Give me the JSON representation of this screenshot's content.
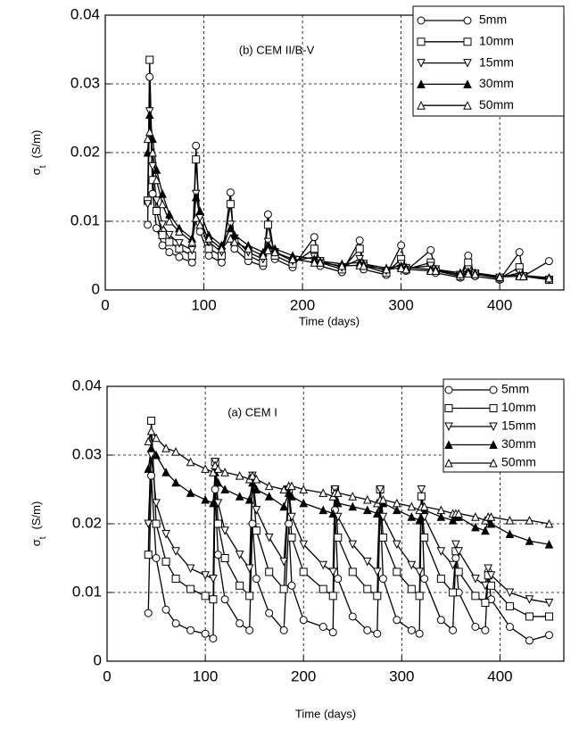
{
  "chart_data": [
    {
      "type": "line",
      "annotation": "(b) CEM II/B-V",
      "x_label": "Time (days)",
      "y_label": "σ",
      "y_label_sub": "t",
      "y_label_unit": "(S/m)",
      "xlim": [
        0,
        465
      ],
      "xticks": [
        0,
        100,
        200,
        300,
        400
      ],
      "ylim": [
        0,
        0.04
      ],
      "yticks": [
        0,
        0.01,
        0.02,
        0.03,
        0.04
      ],
      "grid": true,
      "legend": "upper right",
      "x": [
        43,
        45,
        48,
        52,
        58,
        65,
        75,
        88,
        92,
        96,
        105,
        118,
        127,
        131,
        145,
        160,
        165,
        172,
        190,
        212,
        218,
        240,
        258,
        262,
        285,
        300,
        305,
        330,
        335,
        360,
        368,
        375,
        400,
        420,
        424,
        450
      ],
      "series": [
        {
          "name": "5mm",
          "color": "#000000",
          "marker": "circle",
          "values": [
            0.0095,
            0.031,
            0.014,
            0.009,
            0.0065,
            0.0055,
            0.0048,
            0.004,
            0.021,
            0.0085,
            0.005,
            0.004,
            0.0142,
            0.006,
            0.0042,
            0.0035,
            0.011,
            0.0045,
            0.0033,
            0.0077,
            0.0035,
            0.0026,
            0.0072,
            0.003,
            0.0022,
            0.0065,
            0.0028,
            0.0058,
            0.0025,
            0.0018,
            0.005,
            0.002,
            0.0015,
            0.0055,
            0.002,
            0.0042
          ]
        },
        {
          "name": "10mm",
          "color": "#000000",
          "marker": "square",
          "values": [
            0.013,
            0.0335,
            0.016,
            0.0115,
            0.008,
            0.007,
            0.006,
            0.005,
            0.019,
            0.01,
            0.006,
            0.005,
            0.0125,
            0.007,
            0.005,
            0.004,
            0.0095,
            0.005,
            0.0038,
            0.006,
            0.004,
            0.003,
            0.006,
            0.0035,
            0.0025,
            0.0045,
            0.003,
            0.004,
            0.0028,
            0.002,
            0.004,
            0.0023,
            0.0017,
            0.0033,
            0.002,
            0.0015
          ]
        },
        {
          "name": "15mm",
          "color": "#000000",
          "marker": "triangle-down",
          "values": [
            0.0125,
            0.026,
            0.018,
            0.013,
            0.0095,
            0.008,
            0.0068,
            0.0058,
            0.014,
            0.0105,
            0.007,
            0.0055,
            0.0095,
            0.0075,
            0.0055,
            0.0045,
            0.007,
            0.0055,
            0.0042,
            0.0048,
            0.0042,
            0.0033,
            0.0045,
            0.0038,
            0.0028,
            0.0038,
            0.0032,
            0.0035,
            0.003,
            0.0022,
            0.003,
            0.0024,
            0.0018,
            0.0025,
            0.002,
            0.0015
          ]
        },
        {
          "name": "30mm",
          "color": "#000000",
          "marker": "triangle-filled",
          "values": [
            0.02,
            0.0255,
            0.022,
            0.0175,
            0.014,
            0.011,
            0.009,
            0.0075,
            0.0135,
            0.0115,
            0.008,
            0.0065,
            0.009,
            0.008,
            0.0065,
            0.0055,
            0.0065,
            0.006,
            0.005,
            0.0045,
            0.0042,
            0.0038,
            0.004,
            0.0038,
            0.0032,
            0.0035,
            0.0033,
            0.003,
            0.003,
            0.0025,
            0.0027,
            0.0025,
            0.002,
            0.0022,
            0.0021,
            0.0018
          ]
        },
        {
          "name": "50mm",
          "color": "#000000",
          "marker": "triangle",
          "values": [
            0.022,
            0.023,
            0.02,
            0.016,
            0.0125,
            0.01,
            0.0085,
            0.007,
            0.0105,
            0.0095,
            0.0075,
            0.006,
            0.0075,
            0.007,
            0.006,
            0.005,
            0.0058,
            0.0055,
            0.0045,
            0.004,
            0.004,
            0.0035,
            0.0036,
            0.0035,
            0.003,
            0.0032,
            0.003,
            0.0028,
            0.0028,
            0.0023,
            0.0024,
            0.0023,
            0.0019,
            0.002,
            0.002,
            0.0017
          ]
        }
      ]
    },
    {
      "type": "line",
      "annotation": "(a) CEM I",
      "x_label": "Time  (days)",
      "y_label": "σ",
      "y_label_sub": "t",
      "y_label_unit": "(S/m)",
      "xlim": [
        0,
        465
      ],
      "xticks": [
        0,
        100,
        200,
        300,
        400
      ],
      "ylim": [
        0,
        0.04
      ],
      "yticks": [
        0,
        0.01,
        0.02,
        0.03,
        0.04
      ],
      "grid": true,
      "legend": "upper right",
      "x": [
        42,
        45,
        50,
        60,
        70,
        85,
        100,
        108,
        110,
        113,
        120,
        135,
        145,
        148,
        152,
        165,
        180,
        185,
        188,
        200,
        220,
        230,
        232,
        235,
        250,
        265,
        275,
        278,
        281,
        295,
        310,
        318,
        320,
        323,
        340,
        352,
        355,
        358,
        375,
        385,
        388,
        391,
        410,
        430,
        450
      ],
      "series": [
        {
          "name": "5mm",
          "color": "#000000",
          "marker": "circle",
          "values": [
            0.007,
            0.027,
            0.015,
            0.0075,
            0.0055,
            0.0045,
            0.004,
            0.0033,
            0.025,
            0.0155,
            0.009,
            0.0055,
            0.0045,
            0.02,
            0.012,
            0.007,
            0.0045,
            0.02,
            0.011,
            0.006,
            0.005,
            0.0042,
            0.022,
            0.012,
            0.0065,
            0.0045,
            0.004,
            0.023,
            0.012,
            0.006,
            0.0045,
            0.004,
            0.024,
            0.012,
            0.006,
            0.0045,
            0.015,
            0.01,
            0.005,
            0.0045,
            0.013,
            0.009,
            0.005,
            0.003,
            0.0038
          ]
        },
        {
          "name": "10mm",
          "color": "#000000",
          "marker": "square",
          "values": [
            0.0155,
            0.035,
            0.02,
            0.0145,
            0.012,
            0.0105,
            0.0095,
            0.009,
            0.029,
            0.02,
            0.015,
            0.011,
            0.0095,
            0.0265,
            0.019,
            0.013,
            0.0105,
            0.025,
            0.018,
            0.013,
            0.0105,
            0.0095,
            0.025,
            0.018,
            0.013,
            0.0105,
            0.0095,
            0.025,
            0.018,
            0.013,
            0.0105,
            0.0095,
            0.024,
            0.018,
            0.012,
            0.01,
            0.016,
            0.013,
            0.0095,
            0.0085,
            0.0125,
            0.011,
            0.008,
            0.0065,
            0.0065
          ]
        },
        {
          "name": "15mm",
          "color": "#000000",
          "marker": "triangle-down",
          "values": [
            0.02,
            0.03,
            0.023,
            0.0185,
            0.016,
            0.0135,
            0.0125,
            0.012,
            0.029,
            0.023,
            0.019,
            0.0155,
            0.0135,
            0.027,
            0.022,
            0.018,
            0.0145,
            0.025,
            0.021,
            0.017,
            0.014,
            0.013,
            0.025,
            0.021,
            0.017,
            0.0145,
            0.013,
            0.025,
            0.021,
            0.017,
            0.014,
            0.013,
            0.025,
            0.021,
            0.016,
            0.014,
            0.017,
            0.016,
            0.012,
            0.011,
            0.0135,
            0.0125,
            0.01,
            0.009,
            0.0085
          ]
        },
        {
          "name": "30mm",
          "color": "#000000",
          "marker": "triangle-filled",
          "values": [
            0.028,
            0.031,
            0.03,
            0.0275,
            0.026,
            0.0245,
            0.0235,
            0.023,
            0.0275,
            0.026,
            0.025,
            0.024,
            0.0235,
            0.026,
            0.025,
            0.024,
            0.0225,
            0.0245,
            0.024,
            0.023,
            0.022,
            0.0215,
            0.024,
            0.023,
            0.0225,
            0.022,
            0.0215,
            0.0235,
            0.023,
            0.022,
            0.021,
            0.0205,
            0.0225,
            0.022,
            0.021,
            0.0205,
            0.021,
            0.021,
            0.0195,
            0.019,
            0.0205,
            0.02,
            0.0185,
            0.0175,
            0.017
          ]
        },
        {
          "name": "50mm",
          "color": "#000000",
          "marker": "triangle",
          "values": [
            0.032,
            0.0335,
            0.0325,
            0.031,
            0.0305,
            0.029,
            0.028,
            0.0275,
            0.0285,
            0.028,
            0.0275,
            0.027,
            0.0265,
            0.027,
            0.0265,
            0.0255,
            0.025,
            0.0255,
            0.0255,
            0.025,
            0.0245,
            0.024,
            0.0245,
            0.0245,
            0.024,
            0.0235,
            0.023,
            0.0235,
            0.0235,
            0.023,
            0.0225,
            0.022,
            0.0225,
            0.0225,
            0.022,
            0.0215,
            0.0215,
            0.0215,
            0.021,
            0.0205,
            0.021,
            0.021,
            0.0205,
            0.0205,
            0.02
          ]
        }
      ]
    }
  ]
}
